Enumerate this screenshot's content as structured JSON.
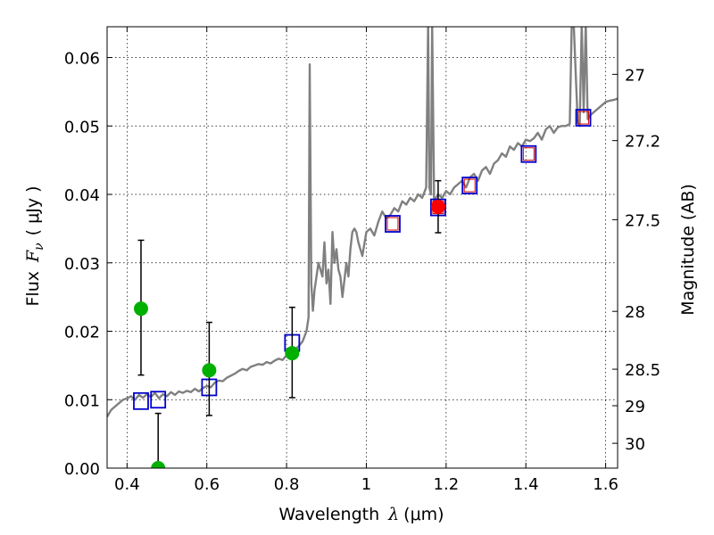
{
  "chart_data": {
    "type": "scatter",
    "xlabel": {
      "main": "Wavelength",
      "symbol": "λ",
      "unit": "(μm)"
    },
    "ylabel": {
      "main": "Flux",
      "symbol": "F",
      "subscript": "ν",
      "unit": "( μJy )"
    },
    "y2label": "Magnitude (AB)",
    "xlim": [
      0.35,
      1.63
    ],
    "ylim": [
      0.0,
      0.0645
    ],
    "grid": true,
    "x_ticks": [
      {
        "value": 0.4,
        "label": "0.4"
      },
      {
        "value": 0.6,
        "label": "0.6"
      },
      {
        "value": 0.8,
        "label": "0.8"
      },
      {
        "value": 1.0,
        "label": "1"
      },
      {
        "value": 1.2,
        "label": "1.2"
      },
      {
        "value": 1.4,
        "label": "1.4"
      },
      {
        "value": 1.6,
        "label": "1.6"
      }
    ],
    "y_ticks": [
      {
        "value": 0.0,
        "label": "0.00"
      },
      {
        "value": 0.01,
        "label": "0.01"
      },
      {
        "value": 0.02,
        "label": "0.02"
      },
      {
        "value": 0.03,
        "label": "0.03"
      },
      {
        "value": 0.04,
        "label": "0.04"
      },
      {
        "value": 0.05,
        "label": "0.05"
      },
      {
        "value": 0.06,
        "label": "0.06"
      }
    ],
    "y2_ticks": [
      {
        "label": "27",
        "mag": 27.0
      },
      {
        "label": "27.2",
        "mag": 27.2
      },
      {
        "label": "27.5",
        "mag": 27.5
      },
      {
        "label": "28",
        "mag": 28.0
      },
      {
        "label": "28.5",
        "mag": 28.5
      },
      {
        "label": "29",
        "mag": 29.0
      },
      {
        "label": "30",
        "mag": 30.0
      }
    ],
    "series": [
      {
        "kind": "line",
        "color": "#808080",
        "x": [
          0.35,
          0.36,
          0.37,
          0.38,
          0.39,
          0.4,
          0.41,
          0.42,
          0.43,
          0.44,
          0.45,
          0.46,
          0.47,
          0.48,
          0.49,
          0.5,
          0.51,
          0.52,
          0.53,
          0.54,
          0.55,
          0.56,
          0.57,
          0.58,
          0.59,
          0.6,
          0.61,
          0.62,
          0.63,
          0.64,
          0.65,
          0.66,
          0.67,
          0.68,
          0.69,
          0.7,
          0.71,
          0.72,
          0.73,
          0.74,
          0.75,
          0.76,
          0.77,
          0.78,
          0.79,
          0.8,
          0.81,
          0.82,
          0.83,
          0.84,
          0.85,
          0.855,
          0.858,
          0.862,
          0.866,
          0.87,
          0.88,
          0.89,
          0.895,
          0.9,
          0.905,
          0.91,
          0.915,
          0.92,
          0.925,
          0.93,
          0.935,
          0.94,
          0.95,
          0.955,
          0.96,
          0.965,
          0.97,
          0.975,
          0.98,
          0.99,
          1.0,
          1.01,
          1.02,
          1.03,
          1.04,
          1.05,
          1.06,
          1.07,
          1.08,
          1.09,
          1.1,
          1.11,
          1.12,
          1.13,
          1.14,
          1.15,
          1.155,
          1.158,
          1.162,
          1.165,
          1.17,
          1.18,
          1.19,
          1.2,
          1.21,
          1.22,
          1.23,
          1.24,
          1.25,
          1.26,
          1.27,
          1.28,
          1.29,
          1.3,
          1.31,
          1.32,
          1.33,
          1.34,
          1.35,
          1.36,
          1.37,
          1.38,
          1.39,
          1.4,
          1.41,
          1.42,
          1.43,
          1.44,
          1.45,
          1.46,
          1.47,
          1.48,
          1.49,
          1.5,
          1.51,
          1.515,
          1.52,
          1.53,
          1.535,
          1.54,
          1.545,
          1.55,
          1.555,
          1.56,
          1.57,
          1.58,
          1.59,
          1.6,
          1.61,
          1.62,
          1.63
        ],
        "y": [
          0.0075,
          0.0085,
          0.009,
          0.0095,
          0.01,
          0.0102,
          0.0105,
          0.01,
          0.0107,
          0.0103,
          0.0108,
          0.0104,
          0.011,
          0.0102,
          0.0108,
          0.0105,
          0.0111,
          0.0107,
          0.0112,
          0.011,
          0.0113,
          0.0111,
          0.0116,
          0.0112,
          0.0117,
          0.012,
          0.0118,
          0.0125,
          0.0128,
          0.0127,
          0.0132,
          0.0135,
          0.0138,
          0.0142,
          0.0145,
          0.0143,
          0.0148,
          0.015,
          0.0152,
          0.0151,
          0.0155,
          0.0153,
          0.0157,
          0.016,
          0.0158,
          0.0165,
          0.0168,
          0.0172,
          0.0178,
          0.0185,
          0.02,
          0.022,
          0.059,
          0.027,
          0.023,
          0.026,
          0.03,
          0.028,
          0.033,
          0.027,
          0.029,
          0.024,
          0.0345,
          0.03,
          0.032,
          0.029,
          0.028,
          0.025,
          0.03,
          0.028,
          0.032,
          0.0345,
          0.035,
          0.0345,
          0.033,
          0.031,
          0.0345,
          0.035,
          0.034,
          0.036,
          0.0375,
          0.0365,
          0.037,
          0.038,
          0.0375,
          0.039,
          0.0385,
          0.0395,
          0.039,
          0.04,
          0.0395,
          0.041,
          0.065,
          0.041,
          0.04,
          0.065,
          0.039,
          0.04,
          0.0395,
          0.0405,
          0.04,
          0.041,
          0.0415,
          0.042,
          0.041,
          0.0425,
          0.043,
          0.042,
          0.0435,
          0.044,
          0.043,
          0.0445,
          0.045,
          0.046,
          0.0455,
          0.047,
          0.0465,
          0.0475,
          0.047,
          0.048,
          0.0478,
          0.0482,
          0.049,
          0.048,
          0.0495,
          0.05,
          0.049,
          0.0498,
          0.05,
          0.05,
          0.0503,
          0.065,
          0.065,
          0.0505,
          0.05,
          0.065,
          0.052,
          0.065,
          0.051,
          0.0515,
          0.052,
          0.0525,
          0.053,
          0.0535,
          0.0537,
          0.0538,
          0.054
        ]
      },
      {
        "kind": "model_boxes",
        "color": "#0000cc",
        "x": [
          0.435,
          0.478,
          0.606,
          0.814
        ],
        "y": [
          0.0098,
          0.01,
          0.0118,
          0.0183
        ]
      },
      {
        "kind": "model_boxes_filled",
        "color": "#0000cc",
        "inner_color": "#cc0000",
        "x": [
          1.066,
          1.18,
          1.259,
          1.407,
          1.544
        ],
        "y": [
          0.0357,
          0.0381,
          0.0413,
          0.0459,
          0.0512
        ]
      },
      {
        "kind": "points_errorbars",
        "color": "#00b000",
        "x": [
          0.435,
          0.478,
          0.606,
          0.814
        ],
        "y": [
          0.0233,
          0.0,
          0.0143,
          0.0168
        ],
        "err_low": [
          0.0097,
          0.0,
          0.0066,
          0.0065
        ],
        "err_high": [
          0.01,
          0.008,
          0.007,
          0.0067
        ]
      },
      {
        "kind": "points_errorbars",
        "color": "#ff0000",
        "x": [
          1.18
        ],
        "y": [
          0.0382
        ],
        "err_low": [
          0.0038
        ],
        "err_high": [
          0.0038
        ]
      }
    ]
  }
}
